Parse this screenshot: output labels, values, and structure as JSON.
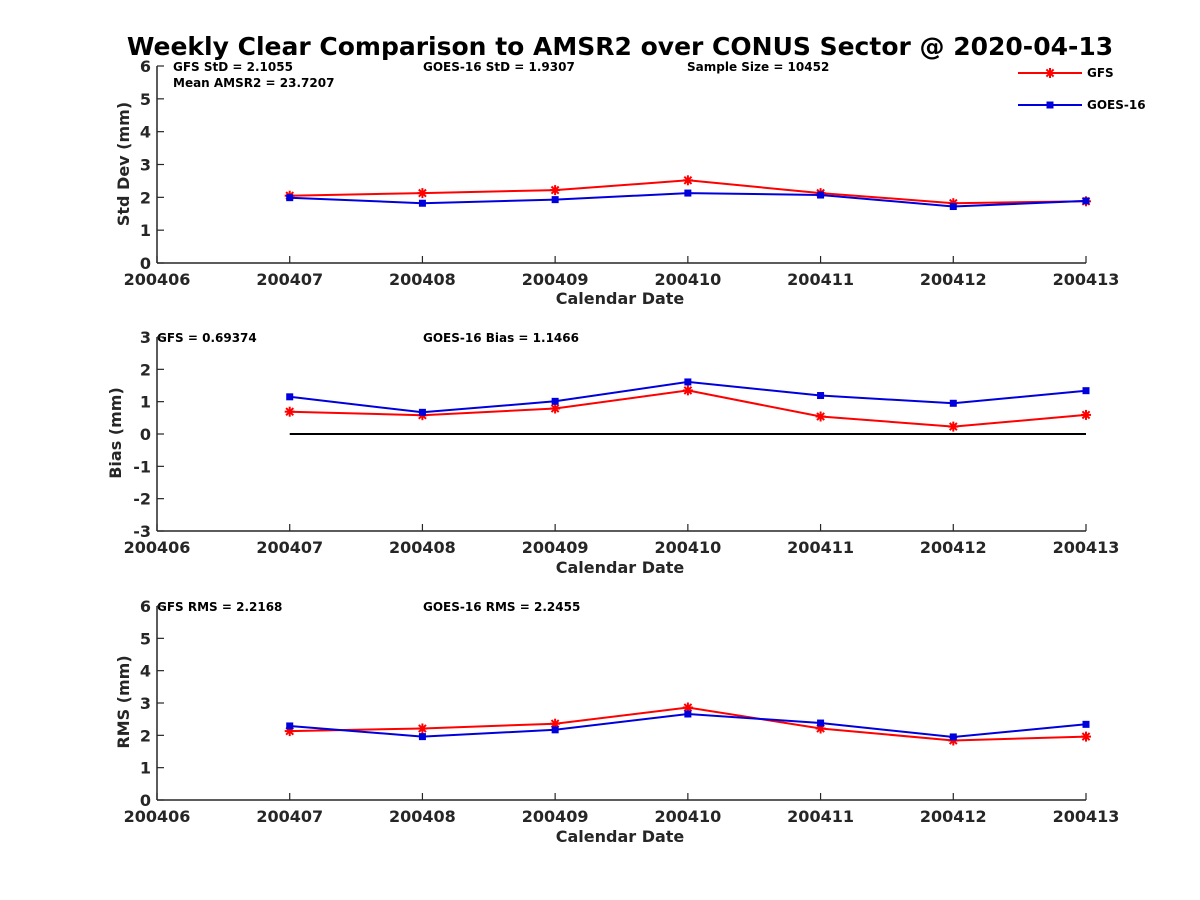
{
  "figure_title": "Weekly Clear Comparison to AMSR2 over CONUS Sector @ 2020-04-13",
  "colors": {
    "gfs": "#ff0000",
    "goes": "#0000dd",
    "axis": "#262626",
    "zero_line": "#000000"
  },
  "legend": {
    "placement": "top-right",
    "entries": [
      {
        "label": "GFS",
        "color": "#ff0000",
        "marker": "asterisk"
      },
      {
        "label": "GOES-16",
        "color": "#0000dd",
        "marker": "square"
      }
    ]
  },
  "chart_data": [
    {
      "type": "line",
      "ylabel": "Std Dev (mm)",
      "xlabel": "Calendar Date",
      "x_ticks": [
        "200406",
        "200407",
        "200408",
        "200409",
        "200410",
        "200411",
        "200412",
        "200413"
      ],
      "ylim": [
        0,
        6
      ],
      "y_ticks": [
        "0",
        "1",
        "2",
        "3",
        "4",
        "5",
        "6"
      ],
      "zero_line": false,
      "annotations": {
        "a1": "GFS StD = 2.1055",
        "a2": "GOES-16 StD = 1.9307",
        "a3": "Sample Size = 10452",
        "a4": "Mean AMSR2 = 23.7207"
      },
      "series": [
        {
          "name": "GFS",
          "color": "#ff0000",
          "marker": "asterisk",
          "x": [
            "200407",
            "200408",
            "200409",
            "200410",
            "200411",
            "200412",
            "200413"
          ],
          "values": [
            2.05,
            2.13,
            2.22,
            2.52,
            2.13,
            1.82,
            1.88
          ]
        },
        {
          "name": "GOES-16",
          "color": "#0000dd",
          "marker": "square",
          "x": [
            "200407",
            "200408",
            "200409",
            "200410",
            "200411",
            "200412",
            "200413"
          ],
          "values": [
            1.99,
            1.82,
            1.93,
            2.13,
            2.07,
            1.72,
            1.89
          ]
        }
      ]
    },
    {
      "type": "line",
      "ylabel": "Bias (mm)",
      "xlabel": "Calendar Date",
      "x_ticks": [
        "200406",
        "200407",
        "200408",
        "200409",
        "200410",
        "200411",
        "200412",
        "200413"
      ],
      "ylim": [
        -3,
        3
      ],
      "y_ticks": [
        "-3",
        "-2",
        "-1",
        "0",
        "1",
        "2",
        "3"
      ],
      "zero_line": true,
      "annotations": {
        "a1": "GFS = 0.69374",
        "a2": "GOES-16 Bias  = 1.1466"
      },
      "series": [
        {
          "name": "GFS",
          "color": "#ff0000",
          "marker": "asterisk",
          "x": [
            "200407",
            "200408",
            "200409",
            "200410",
            "200411",
            "200412",
            "200413"
          ],
          "values": [
            0.69,
            0.58,
            0.79,
            1.35,
            0.54,
            0.23,
            0.59
          ]
        },
        {
          "name": "GOES-16",
          "color": "#0000dd",
          "marker": "square",
          "x": [
            "200407",
            "200408",
            "200409",
            "200410",
            "200411",
            "200412",
            "200413"
          ],
          "values": [
            1.15,
            0.67,
            1.01,
            1.61,
            1.19,
            0.95,
            1.34
          ]
        }
      ]
    },
    {
      "type": "line",
      "ylabel": "RMS (mm)",
      "xlabel": "Calendar Date",
      "x_ticks": [
        "200406",
        "200407",
        "200408",
        "200409",
        "200410",
        "200411",
        "200412",
        "200413"
      ],
      "ylim": [
        0,
        6
      ],
      "y_ticks": [
        "0",
        "1",
        "2",
        "3",
        "4",
        "5",
        "6"
      ],
      "zero_line": false,
      "annotations": {
        "a1": "GFS RMS = 2.2168",
        "a2": "GOES-16 RMS = 2.2455"
      },
      "series": [
        {
          "name": "GFS",
          "color": "#ff0000",
          "marker": "asterisk",
          "x": [
            "200407",
            "200408",
            "200409",
            "200410",
            "200411",
            "200412",
            "200413"
          ],
          "values": [
            2.13,
            2.21,
            2.36,
            2.86,
            2.21,
            1.84,
            1.96
          ]
        },
        {
          "name": "GOES-16",
          "color": "#0000dd",
          "marker": "square",
          "x": [
            "200407",
            "200408",
            "200409",
            "200410",
            "200411",
            "200412",
            "200413"
          ],
          "values": [
            2.29,
            1.96,
            2.17,
            2.66,
            2.38,
            1.95,
            2.34
          ]
        }
      ]
    }
  ]
}
